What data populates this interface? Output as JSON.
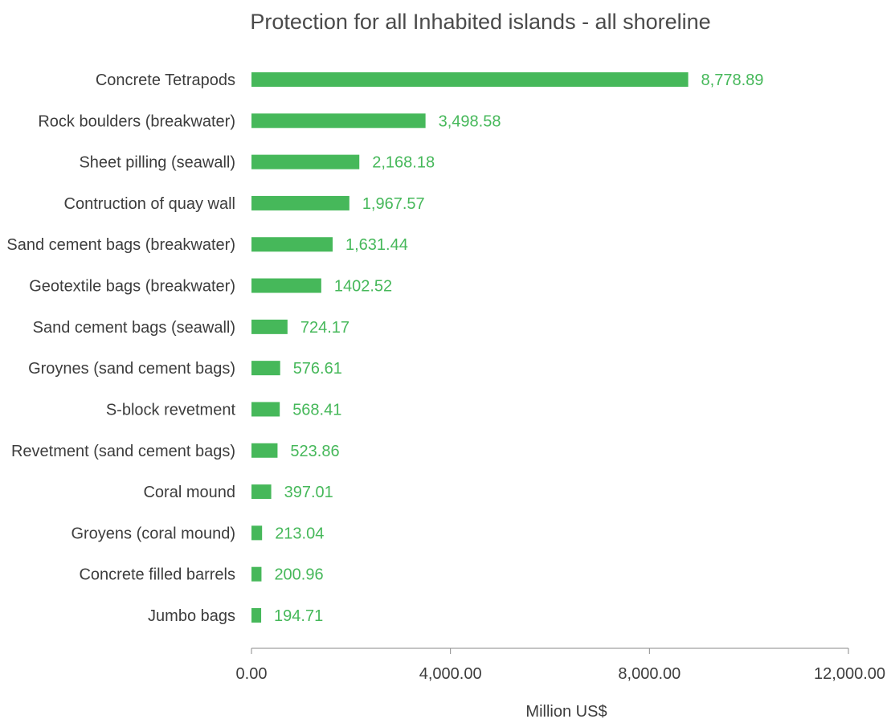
{
  "colors": {
    "bar": "#46b85a",
    "value_label": "#46b85a",
    "axis": "#8a8a8a",
    "text": "#3d3d3d"
  },
  "chart_data": {
    "type": "bar",
    "orientation": "horizontal",
    "title": "Protection for all Inhabited islands - all shoreline",
    "xlabel": "Million US$",
    "ylabel": "",
    "xlim": [
      0,
      12000
    ],
    "grid": false,
    "legend": "none",
    "categories": [
      "Concrete Tetrapods",
      "Rock boulders (breakwater)",
      "Sheet pilling (seawall)",
      "Contruction of quay wall",
      "Sand cement bags (breakwater)",
      "Geotextile bags (breakwater)",
      "Sand cement bags (seawall)",
      "Groynes (sand cement bags)",
      "S-block revetment",
      "Revetment (sand cement bags)",
      "Coral mound",
      "Groyens (coral mound)",
      "Concrete filled barrels",
      "Jumbo bags"
    ],
    "values": [
      8778.89,
      3498.58,
      2168.18,
      1967.57,
      1631.44,
      1402.52,
      724.17,
      576.61,
      568.41,
      523.86,
      397.01,
      213.04,
      200.96,
      194.71
    ],
    "value_labels": [
      "8,778.89",
      "3,498.58",
      "2,168.18",
      "1,967.57",
      "1,631.44",
      "1402.52",
      "724.17",
      "576.61",
      "568.41",
      "523.86",
      "397.01",
      "213.04",
      "200.96",
      "194.71"
    ],
    "x_ticks": [
      0,
      4000,
      8000,
      12000
    ],
    "x_tick_labels": [
      "0.00",
      "4,000.00",
      "8,000.00",
      "12,000.00"
    ]
  }
}
